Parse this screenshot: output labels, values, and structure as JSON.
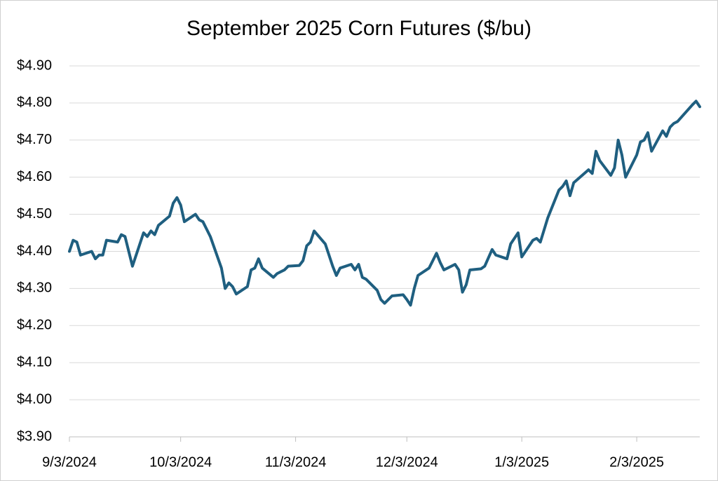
{
  "chart_data": {
    "type": "line",
    "title": "September 2025 Corn Futures ($/bu)",
    "x": [
      "9/3/2024",
      "9/4/2024",
      "9/5/2024",
      "9/6/2024",
      "9/9/2024",
      "9/10/2024",
      "9/11/2024",
      "9/12/2024",
      "9/13/2024",
      "9/16/2024",
      "9/17/2024",
      "9/18/2024",
      "9/19/2024",
      "9/20/2024",
      "9/23/2024",
      "9/24/2024",
      "9/25/2024",
      "9/26/2024",
      "9/27/2024",
      "9/30/2024",
      "10/1/2024",
      "10/2/2024",
      "10/3/2024",
      "10/4/2024",
      "10/7/2024",
      "10/8/2024",
      "10/9/2024",
      "10/10/2024",
      "10/11/2024",
      "10/14/2024",
      "10/15/2024",
      "10/16/2024",
      "10/17/2024",
      "10/18/2024",
      "10/21/2024",
      "10/22/2024",
      "10/23/2024",
      "10/24/2024",
      "10/25/2024",
      "10/28/2024",
      "10/29/2024",
      "10/30/2024",
      "10/31/2024",
      "11/1/2024",
      "11/4/2024",
      "11/5/2024",
      "11/6/2024",
      "11/7/2024",
      "11/8/2024",
      "11/11/2024",
      "11/12/2024",
      "11/13/2024",
      "11/14/2024",
      "11/15/2024",
      "11/18/2024",
      "11/19/2024",
      "11/20/2024",
      "11/21/2024",
      "11/22/2024",
      "11/25/2024",
      "11/26/2024",
      "11/27/2024",
      "11/29/2024",
      "12/2/2024",
      "12/3/2024",
      "12/4/2024",
      "12/5/2024",
      "12/6/2024",
      "12/9/2024",
      "12/10/2024",
      "12/11/2024",
      "12/12/2024",
      "12/13/2024",
      "12/16/2024",
      "12/17/2024",
      "12/18/2024",
      "12/19/2024",
      "12/20/2024",
      "12/23/2024",
      "12/24/2024",
      "12/26/2024",
      "12/27/2024",
      "12/30/2024",
      "12/31/2024",
      "1/2/2025",
      "1/3/2025",
      "1/6/2025",
      "1/7/2025",
      "1/8/2025",
      "1/10/2025",
      "1/13/2025",
      "1/14/2025",
      "1/15/2025",
      "1/16/2025",
      "1/17/2025",
      "1/21/2025",
      "1/22/2025",
      "1/23/2025",
      "1/24/2025",
      "1/27/2025",
      "1/28/2025",
      "1/29/2025",
      "1/30/2025",
      "1/31/2025",
      "2/3/2025",
      "2/4/2025",
      "2/5/2025",
      "2/6/2025",
      "2/7/2025",
      "2/10/2025",
      "2/11/2025",
      "2/12/2025",
      "2/13/2025",
      "2/14/2025",
      "2/18/2025",
      "2/19/2025",
      "2/20/2025"
    ],
    "series": [
      {
        "color": "#1f5f80",
        "values": [
          4.4,
          4.43,
          4.425,
          4.39,
          4.4,
          4.38,
          4.39,
          4.39,
          4.43,
          4.425,
          4.445,
          4.44,
          4.4,
          4.36,
          4.45,
          4.44,
          4.455,
          4.445,
          4.47,
          4.495,
          4.53,
          4.545,
          4.525,
          4.48,
          4.5,
          4.485,
          4.48,
          4.46,
          4.44,
          4.355,
          4.3,
          4.315,
          4.305,
          4.285,
          4.305,
          4.35,
          4.355,
          4.38,
          4.355,
          4.33,
          4.34,
          4.345,
          4.35,
          4.36,
          4.362,
          4.375,
          4.415,
          4.425,
          4.455,
          4.42,
          4.39,
          4.36,
          4.335,
          4.355,
          4.365,
          4.35,
          4.365,
          4.33,
          4.325,
          4.295,
          4.27,
          4.26,
          4.28,
          4.283,
          4.27,
          4.255,
          4.3,
          4.335,
          4.355,
          4.375,
          4.395,
          4.37,
          4.35,
          4.365,
          4.35,
          4.29,
          4.31,
          4.35,
          4.353,
          4.36,
          4.405,
          4.39,
          4.38,
          4.42,
          4.45,
          4.385,
          4.43,
          4.435,
          4.425,
          4.49,
          4.565,
          4.575,
          4.59,
          4.55,
          4.585,
          4.62,
          4.61,
          4.67,
          4.645,
          4.605,
          4.625,
          4.7,
          4.66,
          4.6,
          4.66,
          4.695,
          4.7,
          4.72,
          4.67,
          4.725,
          4.71,
          4.735,
          4.745,
          4.75,
          4.795,
          4.805,
          4.79
        ]
      }
    ],
    "xlim": [
      "9/3/2024",
      "2/20/2025"
    ],
    "xticks": [
      "9/3/2024",
      "10/3/2024",
      "11/3/2024",
      "12/3/2024",
      "1/3/2025",
      "2/3/2025"
    ],
    "ylim": [
      3.9,
      4.9
    ],
    "yticks": [
      {
        "value": 3.9,
        "label": "$3.90"
      },
      {
        "value": 4.0,
        "label": "$4.00"
      },
      {
        "value": 4.1,
        "label": "$4.10"
      },
      {
        "value": 4.2,
        "label": "$4.20"
      },
      {
        "value": 4.3,
        "label": "$4.30"
      },
      {
        "value": 4.4,
        "label": "$4.40"
      },
      {
        "value": 4.5,
        "label": "$4.50"
      },
      {
        "value": 4.6,
        "label": "$4.60"
      },
      {
        "value": 4.7,
        "label": "$4.70"
      },
      {
        "value": 4.8,
        "label": "$4.80"
      },
      {
        "value": 4.9,
        "label": "$4.90"
      }
    ],
    "grid": true
  }
}
